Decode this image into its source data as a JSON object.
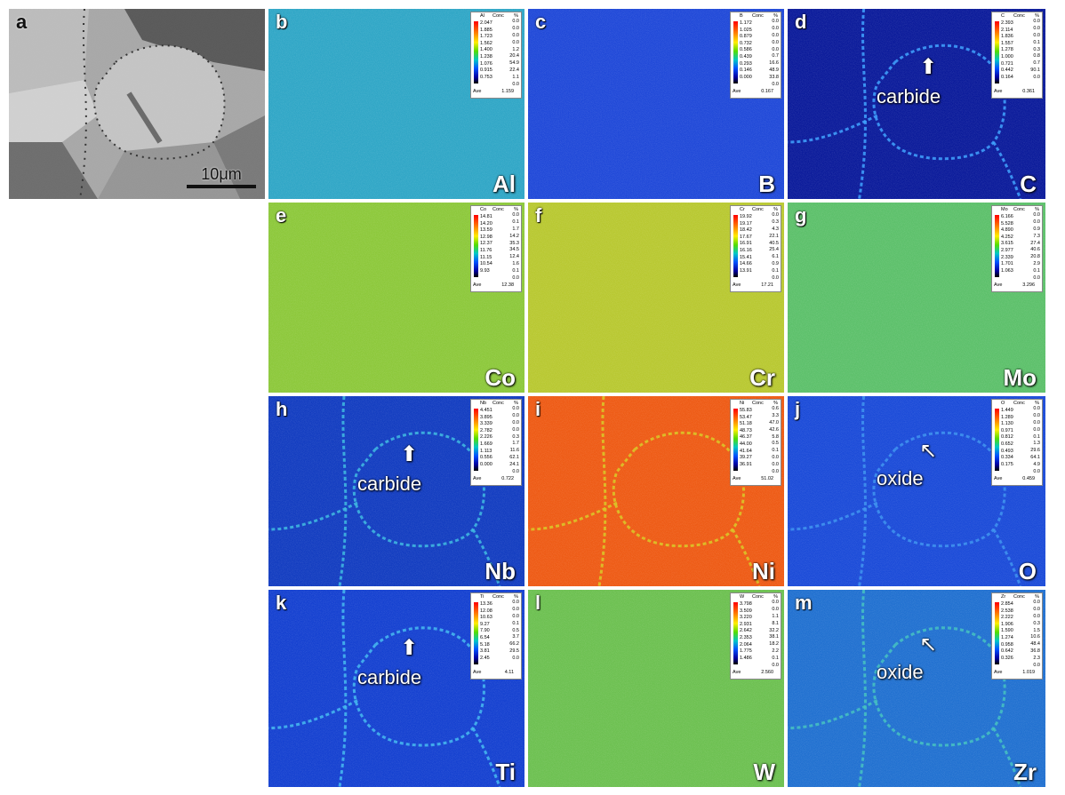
{
  "panels": [
    {
      "letter": "a",
      "type": "sem",
      "scale": "10μm"
    },
    {
      "letter": "b",
      "type": "map",
      "element": "Al",
      "base": "#2fa6c6",
      "legend": {
        "symbol": "Al",
        "conc_label": "Conc",
        "pct_label": "%",
        "values": [
          "2.047",
          "1.885",
          "1.723",
          "1.562",
          "1.400",
          "1.238",
          "1.076",
          "0.915",
          "0.753"
        ],
        "percents": [
          "0.0",
          "0.0",
          "0.0",
          "0.0",
          "1.2",
          "20.4",
          "54.9",
          "22.4",
          "1.1",
          "0.0"
        ],
        "ave_label": "Ave",
        "ave": "1.159"
      }
    },
    {
      "letter": "c",
      "type": "map",
      "element": "B",
      "base": "#1f48d8",
      "legend": {
        "symbol": "B",
        "conc_label": "Conc",
        "pct_label": "%",
        "values": [
          "1.172",
          "1.025",
          "0.879",
          "0.732",
          "0.586",
          "0.439",
          "0.293",
          "0.146",
          "0.000"
        ],
        "percents": [
          "0.0",
          "0.0",
          "0.0",
          "0.0",
          "0.0",
          "0.7",
          "16.6",
          "48.9",
          "33.8",
          "0.0"
        ],
        "ave_label": "Ave",
        "ave": "0.167"
      }
    },
    {
      "letter": "d",
      "type": "map",
      "element": "C",
      "base": "#0a1a9a",
      "network": "#3aa0ff",
      "annotation": "carbide",
      "legend": {
        "symbol": "C",
        "conc_label": "Conc",
        "pct_label": "%",
        "values": [
          "2.393",
          "2.114",
          "1.836",
          "1.557",
          "1.278",
          "1.000",
          "0.721",
          "0.442",
          "0.164"
        ],
        "percents": [
          "0.0",
          "0.0",
          "0.0",
          "0.1",
          "0.3",
          "0.8",
          "0.7",
          "90.1",
          "0.0"
        ],
        "ave_label": "Ave",
        "ave": "0.361"
      }
    },
    {
      "letter": "e",
      "type": "map",
      "element": "Co",
      "base": "#8cc83a",
      "legend": {
        "symbol": "Co",
        "conc_label": "Conc",
        "pct_label": "%",
        "values": [
          "14.81",
          "14.20",
          "13.59",
          "12.98",
          "12.37",
          "11.76",
          "11.15",
          "10.54",
          "9.93"
        ],
        "percents": [
          "0.0",
          "0.1",
          "1.7",
          "14.2",
          "35.3",
          "34.5",
          "12.4",
          "1.6",
          "0.1",
          "0.0"
        ],
        "ave_label": "Ave",
        "ave": "12.38"
      }
    },
    {
      "letter": "f",
      "type": "map",
      "element": "Cr",
      "base": "#b8c830",
      "legend": {
        "symbol": "Cr",
        "conc_label": "Conc",
        "pct_label": "%",
        "values": [
          "19.92",
          "19.17",
          "18.42",
          "17.67",
          "16.91",
          "16.16",
          "15.41",
          "14.66",
          "13.91"
        ],
        "percents": [
          "0.0",
          "0.3",
          "4.3",
          "22.1",
          "40.5",
          "25.4",
          "6.1",
          "0.9",
          "0.1",
          "0.0"
        ],
        "ave_label": "Ave",
        "ave": "17.21"
      }
    },
    {
      "letter": "g",
      "type": "map",
      "element": "Mo",
      "base": "#5cc06a",
      "legend": {
        "symbol": "Mo",
        "conc_label": "Conc",
        "pct_label": "%",
        "values": [
          "6.166",
          "5.528",
          "4.890",
          "4.252",
          "3.615",
          "2.977",
          "2.339",
          "1.701",
          "1.063"
        ],
        "percents": [
          "0.0",
          "0.0",
          "0.9",
          "7.3",
          "27.4",
          "40.6",
          "20.8",
          "2.9",
          "0.1",
          "0.0"
        ],
        "ave_label": "Ave",
        "ave": "3.296"
      }
    },
    {
      "letter": "h",
      "type": "map",
      "element": "Nb",
      "base": "#123cc0",
      "network": "#3ab8e0",
      "annotation": "carbide",
      "legend": {
        "symbol": "Nb",
        "conc_label": "Conc",
        "pct_label": "%",
        "values": [
          "4.451",
          "3.895",
          "3.339",
          "2.782",
          "2.226",
          "1.669",
          "1.113",
          "0.556",
          "0.000"
        ],
        "percents": [
          "0.0",
          "0.0",
          "0.0",
          "0.0",
          "0.3",
          "1.7",
          "11.6",
          "62.1",
          "24.1",
          "0.0"
        ],
        "ave_label": "Ave",
        "ave": "0.722"
      }
    },
    {
      "letter": "i",
      "type": "map",
      "element": "Ni",
      "base": "#ee5a14",
      "network": "#d8c820",
      "legend": {
        "symbol": "Ni",
        "conc_label": "Conc",
        "pct_label": "%",
        "values": [
          "55.83",
          "53.47",
          "51.18",
          "48.73",
          "46.37",
          "44.00",
          "41.64",
          "39.27",
          "36.91"
        ],
        "percents": [
          "0.6",
          "3.3",
          "47.0",
          "42.6",
          "5.8",
          "0.5",
          "0.1",
          "0.0",
          "0.0",
          "0.0"
        ],
        "ave_label": "Ave",
        "ave": "51.02"
      }
    },
    {
      "letter": "j",
      "type": "map",
      "element": "O",
      "base": "#1a4ad8",
      "network": "#3a90f0",
      "annotation": "oxide",
      "legend": {
        "symbol": "O",
        "conc_label": "Conc",
        "pct_label": "%",
        "values": [
          "1.449",
          "1.289",
          "1.130",
          "0.971",
          "0.812",
          "0.652",
          "0.493",
          "0.334",
          "0.175"
        ],
        "percents": [
          "0.0",
          "0.0",
          "0.0",
          "0.0",
          "0.1",
          "1.3",
          "29.6",
          "64.1",
          "4.9",
          "0.0"
        ],
        "ave_label": "Ave",
        "ave": "0.459"
      }
    },
    {
      "letter": "k",
      "type": "map",
      "element": "Ti",
      "base": "#1440d0",
      "network": "#40b8f0",
      "annotation": "carbide",
      "legend": {
        "symbol": "Ti",
        "conc_label": "Conc",
        "pct_label": "%",
        "values": [
          "13.36",
          "12.08",
          "10.63",
          "9.27",
          "7.90",
          "6.54",
          "5.18",
          "3.81",
          "2.45"
        ],
        "percents": [
          "0.0",
          "0.0",
          "0.0",
          "0.1",
          "0.5",
          "3.7",
          "66.2",
          "29.5",
          "0.0"
        ],
        "ave_label": "Ave",
        "ave": "4.11"
      }
    },
    {
      "letter": "l",
      "type": "map",
      "element": "W",
      "base": "#6cc050",
      "legend": {
        "symbol": "W",
        "conc_label": "Conc",
        "pct_label": "%",
        "values": [
          "3.798",
          "3.509",
          "3.220",
          "2.931",
          "2.642",
          "2.353",
          "2.064",
          "1.775",
          "1.486"
        ],
        "percents": [
          "0.0",
          "0.0",
          "1.1",
          "8.1",
          "32.2",
          "38.1",
          "18.2",
          "2.2",
          "0.1",
          "0.0"
        ],
        "ave_label": "Ave",
        "ave": "2.560"
      }
    },
    {
      "letter": "m",
      "type": "map",
      "element": "Zr",
      "base": "#2070d0",
      "network": "#40c0c0",
      "annotation": "oxide",
      "legend": {
        "symbol": "Zr",
        "conc_label": "Conc",
        "pct_label": "%",
        "values": [
          "2.854",
          "2.538",
          "2.222",
          "1.906",
          "1.590",
          "1.274",
          "0.958",
          "0.642",
          "0.326"
        ],
        "percents": [
          "0.0",
          "0.0",
          "0.0",
          "0.3",
          "1.5",
          "10.6",
          "48.4",
          "36.8",
          "2.3",
          "0.0"
        ],
        "ave_label": "Ave",
        "ave": "1.019"
      }
    }
  ]
}
